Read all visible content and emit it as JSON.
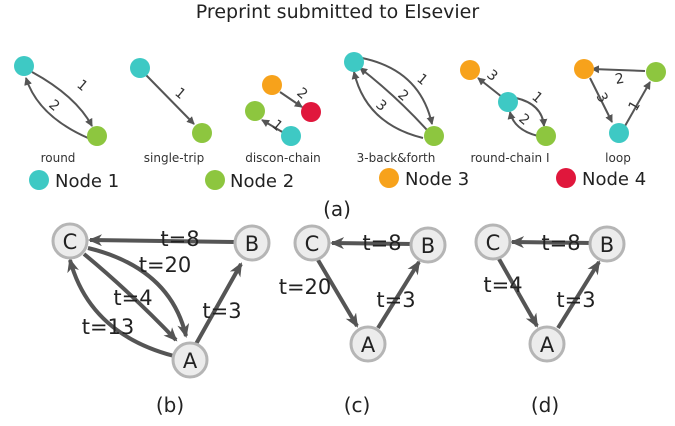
{
  "header": {
    "text": "Preprint submitted to Elsevier"
  },
  "colors": {
    "node1": "#3ec9c4",
    "node2": "#8dc63f",
    "node3": "#f7a21b",
    "node4": "#e0173c",
    "edge": "#555555",
    "node_fill": "#ececec",
    "node_stroke": "#b5b5b5"
  },
  "panel_a": {
    "label": "(a)",
    "motifs": [
      {
        "label": "round",
        "edge_labels": [
          "1",
          "2"
        ]
      },
      {
        "label": "single-trip",
        "edge_labels": [
          "1"
        ]
      },
      {
        "label": "discon-chain",
        "edge_labels": [
          "2",
          "1"
        ]
      },
      {
        "label": "3-back&forth",
        "edge_labels": [
          "1",
          "2",
          "3"
        ]
      },
      {
        "label": "round-chain I",
        "edge_labels": [
          "3",
          "1",
          "2"
        ]
      },
      {
        "label": "loop",
        "edge_labels": [
          "2",
          "1",
          "3"
        ]
      }
    ],
    "legend": [
      {
        "label": "Node 1"
      },
      {
        "label": "Node 2"
      },
      {
        "label": "Node 3"
      },
      {
        "label": "Node 4"
      }
    ]
  },
  "panel_b": {
    "label": "(b)",
    "nodes": [
      "C",
      "B",
      "A"
    ],
    "edge_labels": [
      "t=8",
      "t=20",
      "t=4",
      "t=13",
      "t=3"
    ]
  },
  "panel_c": {
    "label": "(c)",
    "nodes": [
      "C",
      "B",
      "A"
    ],
    "edge_labels": [
      "t=8",
      "t=20",
      "t=3"
    ]
  },
  "panel_d": {
    "label": "(d)",
    "nodes": [
      "C",
      "B",
      "A"
    ],
    "edge_labels": [
      "t=8",
      "t=4",
      "t=3"
    ]
  }
}
